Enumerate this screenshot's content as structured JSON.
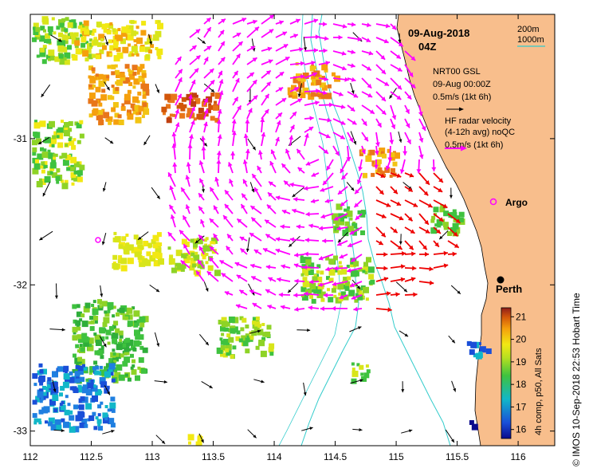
{
  "title": {
    "date": "09-Aug-2018",
    "time": "04Z"
  },
  "depth_legend": {
    "shallow": "200m",
    "deep": "1000m",
    "shallow_color": "#3fc8c8",
    "deep_color": "#33cccc"
  },
  "wind_legend": {
    "line1": "NRT00 GSL",
    "line2": "09-Aug 00:00Z",
    "line3": "0.5m/s (1kt 6h)"
  },
  "radar_legend": {
    "line1": "HF radar velocity",
    "line2": "(4-12h avg) noQC",
    "line3": "0.5m/s (1kt 6h)"
  },
  "places": {
    "argo": "Argo",
    "perth": "Perth"
  },
  "x_axis": {
    "ticks": [
      "112",
      "112.5",
      "113",
      "113.5",
      "114",
      "114.5",
      "115",
      "115.5",
      "116"
    ],
    "range": [
      112,
      116.3
    ]
  },
  "y_axis": {
    "ticks": [
      "-31",
      "-32",
      "-33"
    ],
    "range": [
      -33.1,
      -30.15
    ]
  },
  "colorbar": {
    "label": "4h comp, p50, All Sats",
    "ticks": [
      "21",
      "20",
      "19",
      "18",
      "17",
      "16"
    ],
    "range": [
      15.6,
      21.4
    ]
  },
  "credit": "© IMOS 10-Sep-2018 22:53 Hobart Time",
  "colors": {
    "land": "#f8be8c",
    "radar_arrow": "#ff00ff",
    "radar_arrow_nearshore": "#ee0000",
    "wind_arrow": "#000000",
    "isobath": "#33cccc"
  }
}
